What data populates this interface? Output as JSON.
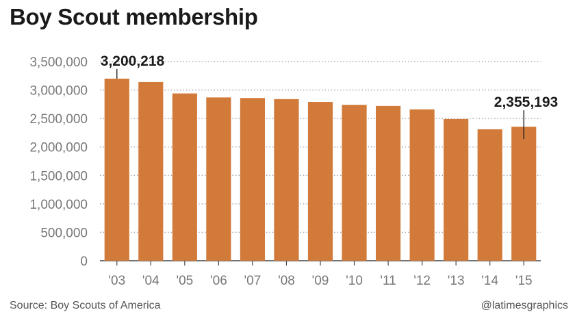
{
  "title": "Boy Scout membership",
  "source": "Source: Boy Scouts of America",
  "credit": "@latimesgraphics",
  "colors": {
    "bar": "#d27a39",
    "grid": "#9a9a9a",
    "text": "#1a1a1a",
    "tick": "#777777"
  },
  "chart_data": {
    "type": "bar",
    "title": "Boy Scout membership",
    "xlabel": "",
    "ylabel": "",
    "categories": [
      "'03",
      "'04",
      "'05",
      "'06",
      "'07",
      "'08",
      "'09",
      "'10",
      "'11",
      "'12",
      "'13",
      "'14",
      "'15"
    ],
    "values": [
      3200218,
      3140000,
      2940000,
      2870000,
      2860000,
      2840000,
      2790000,
      2740000,
      2720000,
      2660000,
      2490000,
      2310000,
      2355193
    ],
    "ylim": [
      0,
      3500000
    ],
    "yticks": [
      0,
      500000,
      1000000,
      1500000,
      2000000,
      2500000,
      3000000,
      3500000
    ],
    "ytick_labels": [
      "0",
      "500,000",
      "1,000,000",
      "1,500,000",
      "2,000,000",
      "2,500,000",
      "3,000,000",
      "3,500,000"
    ],
    "grid": "horizontal dotted",
    "annotations": [
      {
        "category": "'03",
        "text": "3,200,218"
      },
      {
        "category": "'15",
        "text": "2,355,193"
      }
    ]
  }
}
